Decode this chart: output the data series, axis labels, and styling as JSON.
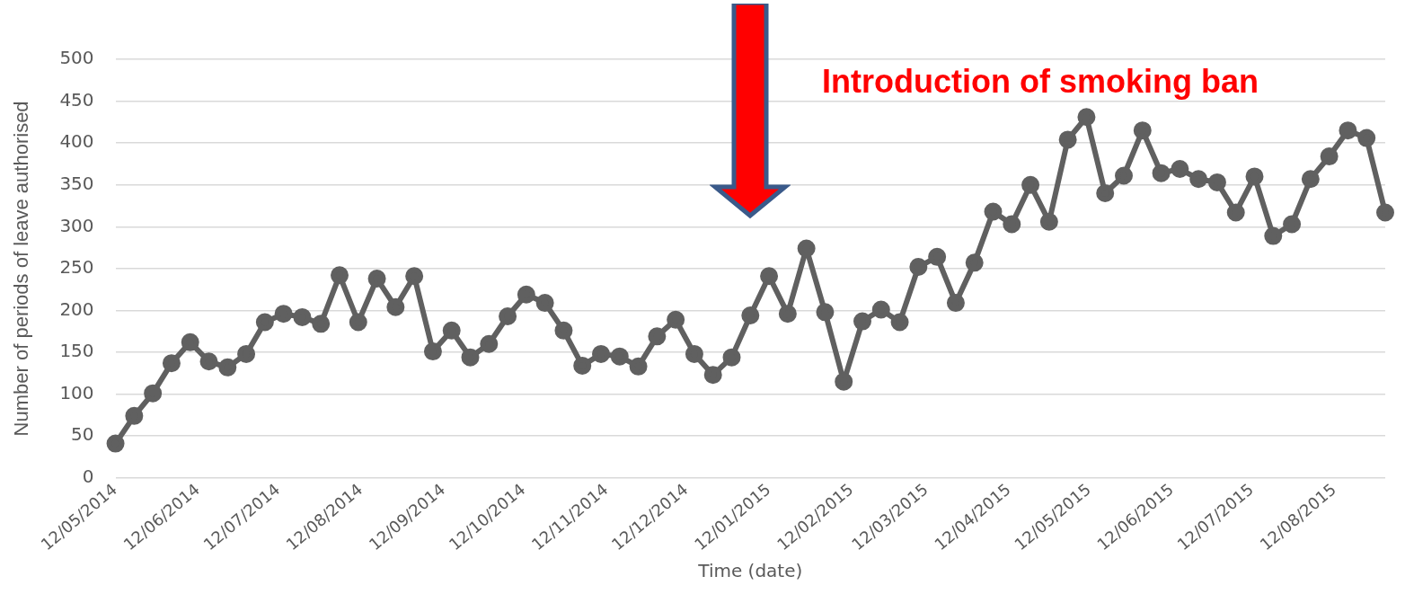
{
  "chart_data": {
    "type": "line",
    "xlabel": "Time (date)",
    "ylabel": "Number of periods of leave authorised",
    "x": [
      "2014-05-12",
      "2014-05-19",
      "2014-05-26",
      "2014-06-02",
      "2014-06-09",
      "2014-06-16",
      "2014-06-23",
      "2014-06-30",
      "2014-07-07",
      "2014-07-14",
      "2014-07-21",
      "2014-07-28",
      "2014-08-04",
      "2014-08-11",
      "2014-08-18",
      "2014-08-25",
      "2014-09-01",
      "2014-09-08",
      "2014-09-15",
      "2014-09-22",
      "2014-09-29",
      "2014-10-06",
      "2014-10-13",
      "2014-10-20",
      "2014-10-27",
      "2014-11-03",
      "2014-11-10",
      "2014-11-17",
      "2014-11-24",
      "2014-12-01",
      "2014-12-08",
      "2014-12-15",
      "2014-12-22",
      "2014-12-29",
      "2015-01-05",
      "2015-01-12",
      "2015-01-19",
      "2015-01-26",
      "2015-02-02",
      "2015-02-09",
      "2015-02-16",
      "2015-02-23",
      "2015-03-02",
      "2015-03-09",
      "2015-03-16",
      "2015-03-23",
      "2015-03-30",
      "2015-04-06",
      "2015-04-13",
      "2015-04-20",
      "2015-04-27",
      "2015-05-04",
      "2015-05-11",
      "2015-05-18",
      "2015-05-25",
      "2015-06-01",
      "2015-06-08",
      "2015-06-15",
      "2015-06-22",
      "2015-06-29",
      "2015-07-06",
      "2015-07-13",
      "2015-07-20",
      "2015-07-27",
      "2015-08-03",
      "2015-08-10",
      "2015-08-17",
      "2015-08-24",
      "2015-08-31"
    ],
    "series": [
      {
        "color": "#606060",
        "values": [
          41,
          74,
          101,
          137,
          162,
          139,
          132,
          148,
          186,
          196,
          192,
          184,
          242,
          186,
          238,
          204,
          241,
          151,
          176,
          144,
          160,
          193,
          219,
          209,
          176,
          134,
          148,
          145,
          133,
          169,
          189,
          148,
          123,
          144,
          194,
          241,
          196,
          274,
          198,
          115,
          187,
          201,
          186,
          252,
          264,
          209,
          257,
          318,
          303,
          350,
          306,
          404,
          431,
          340,
          361,
          415,
          364,
          369,
          357,
          353,
          317,
          360,
          289,
          303,
          357,
          384,
          415,
          406,
          317
        ]
      }
    ],
    "xlim": [
      "2014-05-12",
      "2015-08-31"
    ],
    "xticks": [
      {
        "value": "2014-05-12",
        "label": "12/05/2014"
      },
      {
        "value": "2014-06-12",
        "label": "12/06/2014"
      },
      {
        "value": "2014-07-12",
        "label": "12/07/2014"
      },
      {
        "value": "2014-08-12",
        "label": "12/08/2014"
      },
      {
        "value": "2014-09-12",
        "label": "12/09/2014"
      },
      {
        "value": "2014-10-12",
        "label": "12/10/2014"
      },
      {
        "value": "2014-11-12",
        "label": "12/11/2014"
      },
      {
        "value": "2014-12-12",
        "label": "12/12/2014"
      },
      {
        "value": "2015-01-12",
        "label": "12/01/2015"
      },
      {
        "value": "2015-02-12",
        "label": "12/02/2015"
      },
      {
        "value": "2015-03-12",
        "label": "12/03/2015"
      },
      {
        "value": "2015-04-12",
        "label": "12/04/2015"
      },
      {
        "value": "2015-05-12",
        "label": "12/05/2015"
      },
      {
        "value": "2015-06-12",
        "label": "12/06/2015"
      },
      {
        "value": "2015-07-12",
        "label": "12/07/2015"
      },
      {
        "value": "2015-08-12",
        "label": "12/08/2015"
      }
    ],
    "ylim": [
      0,
      500
    ],
    "yticks": [
      0,
      50,
      100,
      150,
      200,
      250,
      300,
      350,
      400,
      450,
      500
    ],
    "grid": "y",
    "legend": false,
    "marker": "circle",
    "line_style": "solid",
    "annotations": [
      "Introduction of smoking ban"
    ]
  }
}
